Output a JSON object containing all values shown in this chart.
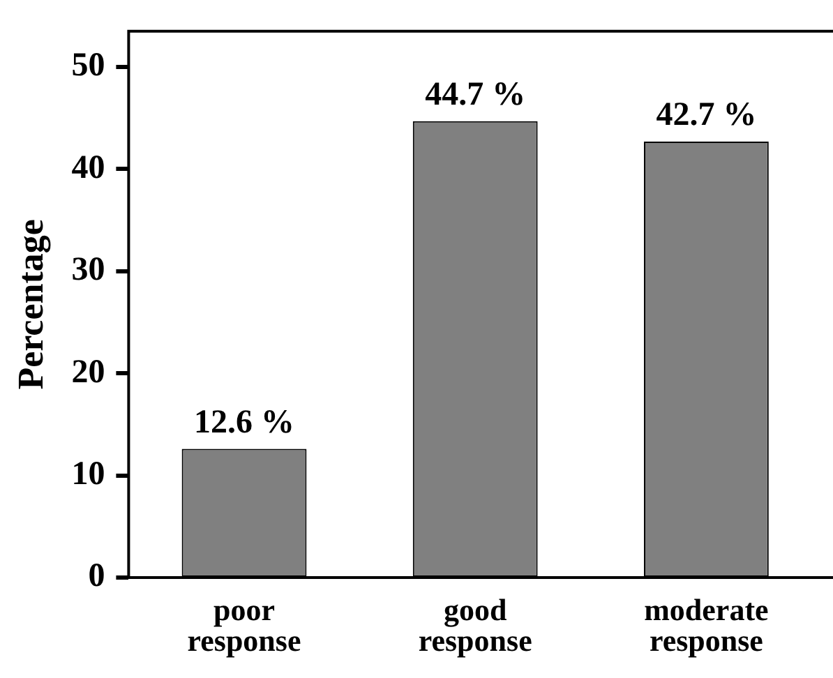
{
  "chart_data": {
    "type": "bar",
    "ylabel": "Percentage",
    "categories": [
      "poor\nresponse",
      "good\nresponse",
      "moderate\nresponse"
    ],
    "values": [
      12.6,
      44.7,
      42.7
    ],
    "value_labels": [
      "12.6 %",
      "44.7 %",
      "42.7 %"
    ],
    "color": "#808080",
    "ylim": [
      0,
      53.5
    ],
    "yticks": [
      0,
      10,
      20,
      30,
      40,
      50
    ],
    "grid": false,
    "legend": false
  }
}
